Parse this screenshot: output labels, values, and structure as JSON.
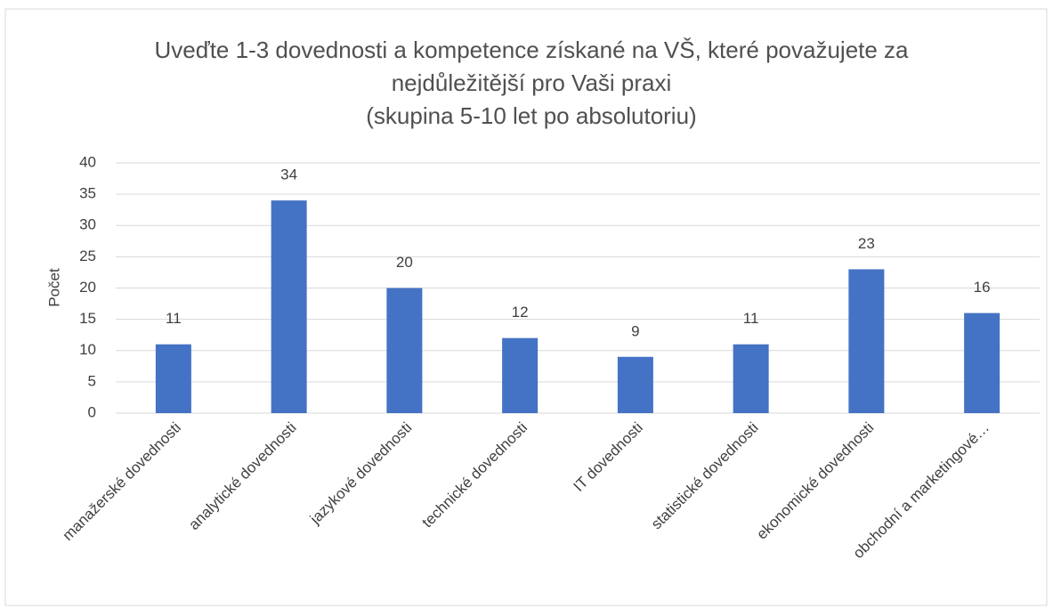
{
  "chart_data": {
    "type": "bar",
    "title": [
      "Uveďte 1-3 dovednosti a kompetence získané na VŠ, které považujete za",
      "nejdůležitější pro Vaši praxi",
      "(skupina 5-10 let po absolutoriu)"
    ],
    "y_label": "Počet",
    "categories": [
      "manažerské dovednosti",
      "analytické dovednosti",
      "jazykové dovednosti",
      "technické dovednosti",
      "IT dovednosti",
      "statistické dovednosti",
      "ekonomické dovednosti",
      "obchodní a marketingové…"
    ],
    "values": [
      11,
      34,
      20,
      12,
      9,
      11,
      23,
      16
    ],
    "color": "#4472c4",
    "ylim": [
      0,
      40
    ],
    "yticks": [
      0,
      5,
      10,
      15,
      20,
      25,
      30,
      35,
      40
    ],
    "grid": true
  }
}
